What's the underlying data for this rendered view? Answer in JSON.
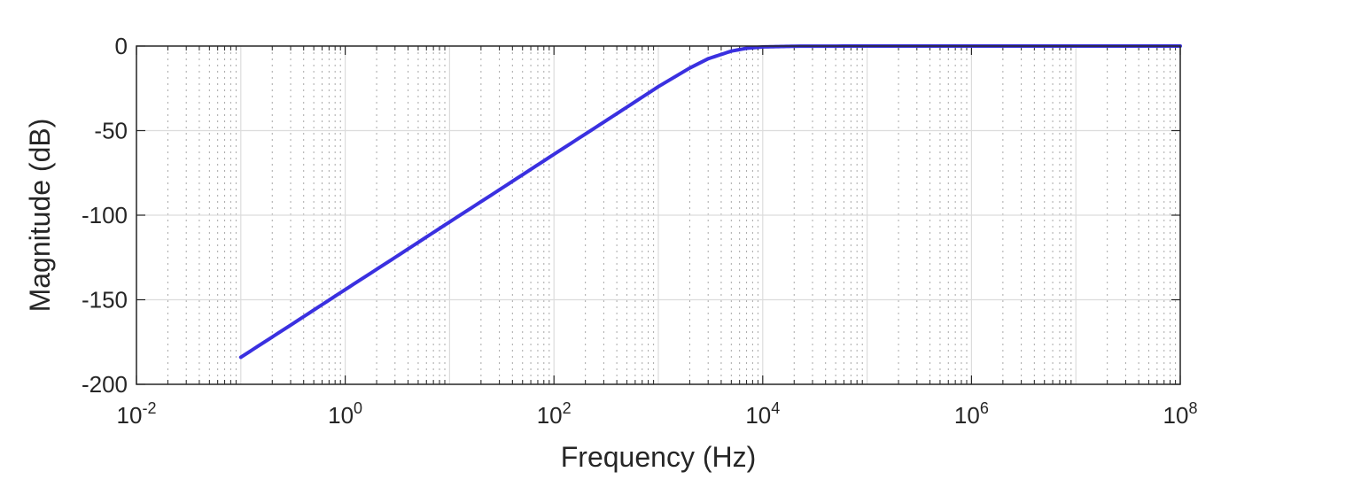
{
  "chart_data": {
    "type": "line",
    "title": "",
    "xlabel": "Frequency (Hz)",
    "ylabel": "Magnitude (dB)",
    "x_scale": "log",
    "xlim": [
      0.01,
      100000000
    ],
    "ylim": [
      -200,
      0
    ],
    "grid": true,
    "minor_grid": true,
    "x_ticks": [
      {
        "base": "10",
        "exp": "-2"
      },
      {
        "base": "10",
        "exp": "0"
      },
      {
        "base": "10",
        "exp": "2"
      },
      {
        "base": "10",
        "exp": "4"
      },
      {
        "base": "10",
        "exp": "6"
      },
      {
        "base": "10",
        "exp": "8"
      }
    ],
    "y_ticks": [
      "0",
      "-50",
      "-100",
      "-150",
      "-200"
    ],
    "series": [
      {
        "color": "#3a30e0",
        "x": [
          0.1,
          0.3,
          1,
          3,
          10,
          30,
          100,
          300,
          1000,
          2000,
          3000,
          5000,
          7000,
          10000,
          20000,
          100000,
          1000000,
          10000000,
          100000000
        ],
        "y": [
          -184,
          -165,
          -144,
          -125,
          -104,
          -85,
          -64,
          -45,
          -24,
          -13,
          -7.5,
          -3,
          -1.3,
          -0.5,
          -0.1,
          0,
          0,
          0,
          0
        ]
      }
    ]
  }
}
